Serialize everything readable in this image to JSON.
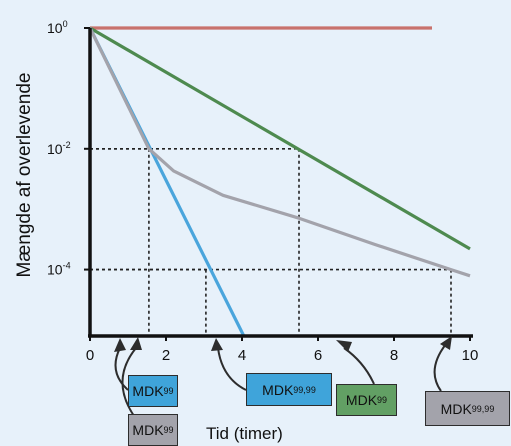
{
  "chart_data": {
    "type": "line",
    "ylabel": "Mængde af overlevende",
    "xlabel": "Tid (timer)",
    "x_ticks": [
      "0",
      "2",
      "4",
      "6",
      "8",
      "10"
    ],
    "y_ticks": [
      {
        "base": "10",
        "exp": "0",
        "value": 1
      },
      {
        "base": "10",
        "exp": "-2",
        "value": 0.01
      },
      {
        "base": "10",
        "exp": "-4",
        "value": 0.0001
      }
    ],
    "xlim": [
      0,
      10
    ],
    "ylim_log10": [
      -5.1,
      0
    ],
    "y_scale": "log",
    "series": [
      {
        "color": "#c8726c",
        "x": [
          0,
          9.0
        ],
        "y": [
          1,
          1
        ]
      },
      {
        "color": "#4e8a4f",
        "x": [
          0,
          10
        ],
        "y": [
          1,
          0.00022
        ]
      },
      {
        "color": "#4aa5dc",
        "x": [
          0,
          4.05
        ],
        "y": [
          1,
          7.9e-06
        ]
      },
      {
        "color": "#a3a3ab",
        "x": [
          0,
          1.55,
          2.2,
          3.5,
          5.5,
          7.5,
          9.5,
          10
        ],
        "y": [
          1,
          0.01,
          0.0043,
          0.0017,
          0.00071,
          0.00026,
          0.0001,
          7.9e-05
        ]
      }
    ],
    "guides": [
      {
        "x": 1.55,
        "y": 0.01
      },
      {
        "x": 5.5,
        "y": 0.01
      },
      {
        "x": 3.05,
        "y": 0.0001
      },
      {
        "x": 9.5,
        "y": 0.0001
      }
    ],
    "annotations": [
      {
        "text": "MDK",
        "sub": "99",
        "fill": "#3fa4da",
        "points_to_x": 1.55
      },
      {
        "text": "MDK",
        "sub": "99",
        "fill": "#a3a3ab",
        "points_to_x": 1.55
      },
      {
        "text": "MDK",
        "sub": "99,99",
        "fill": "#3fa4da",
        "points_to_x": 3.05
      },
      {
        "text": "MDK",
        "sub": "99",
        "fill": "#62a064",
        "points_to_x": 5.5
      },
      {
        "text": "MDK",
        "sub": "99,99",
        "fill": "#a3a3ab",
        "points_to_x": 9.5
      }
    ]
  }
}
